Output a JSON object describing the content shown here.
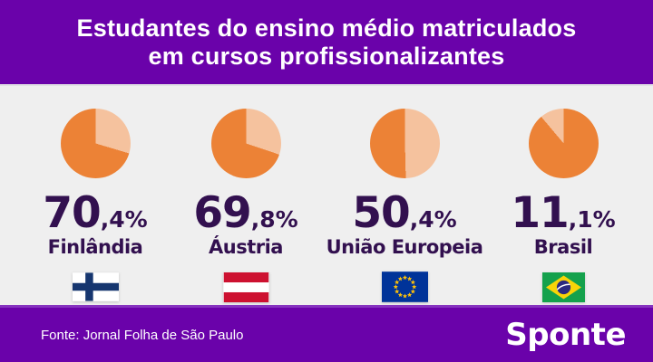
{
  "header": {
    "title_line1": "Estudantes do ensino médio matriculados",
    "title_line2": "em cursos profissionalizantes"
  },
  "colors": {
    "purple": "#6a02aa",
    "accent_line": "#8633bf",
    "background": "#efefef",
    "orange_dark": "#ec8236",
    "orange_light": "#f5c29e",
    "text_dark_purple": "#32104f"
  },
  "chart_data": {
    "type": "pie",
    "title": "Estudantes do ensino médio matriculados em cursos profissionalizantes",
    "unit": "%",
    "pies": [
      {
        "country": "Finlândia",
        "value": 70.4,
        "display_int": "70",
        "display_frac": ",4%",
        "flag": "finland",
        "gradient_stops": [
          [
            "orange_light",
            0,
            106.6
          ],
          [
            "orange_dark",
            106.6,
            360
          ]
        ]
      },
      {
        "country": "Áustria",
        "value": 69.8,
        "display_int": "69",
        "display_frac": ",8%",
        "flag": "austria",
        "gradient_stops": [
          [
            "orange_light",
            0,
            108.7
          ],
          [
            "orange_dark",
            108.7,
            360
          ]
        ]
      },
      {
        "country": "União Europeia",
        "value": 50.4,
        "display_int": "50",
        "display_frac": ",4%",
        "flag": "eu",
        "gradient_stops": [
          [
            "orange_light",
            0,
            178.6
          ],
          [
            "orange_dark",
            178.6,
            360
          ]
        ]
      },
      {
        "country": "Brasil",
        "value": 11.1,
        "display_int": "11",
        "display_frac": ",1%",
        "flag": "brazil",
        "gradient_stops": [
          [
            "orange_dark",
            0,
            320
          ],
          [
            "orange_light",
            320,
            360
          ]
        ]
      }
    ]
  },
  "footer": {
    "source": "Fonte: Jornal Folha de São Paulo",
    "brand": "Sponte"
  }
}
